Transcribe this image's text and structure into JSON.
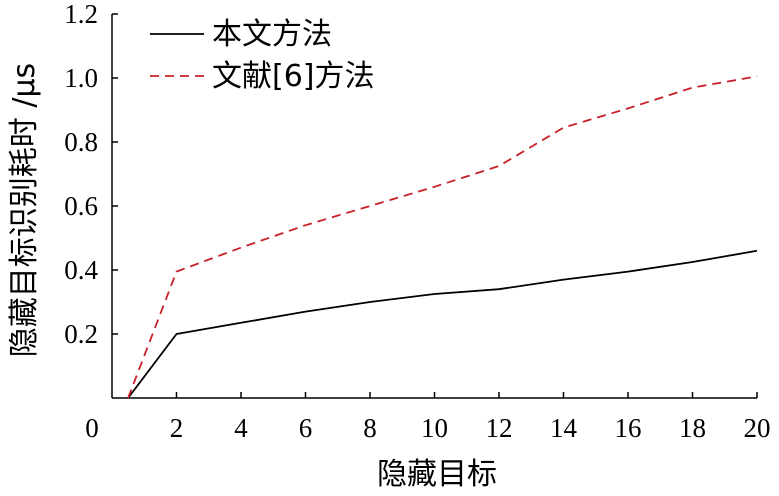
{
  "chart_data": {
    "type": "line",
    "title": "",
    "xlabel": "隐藏目标",
    "ylabel": "隐藏目标识别耗时 /μs",
    "xlim": [
      0,
      20
    ],
    "ylim": [
      0,
      1.2
    ],
    "xticks": [
      0,
      2,
      4,
      6,
      8,
      10,
      12,
      14,
      16,
      18,
      20
    ],
    "xtick_labels": [
      "0",
      "2",
      "4",
      "6",
      "8",
      "10",
      "12",
      "14",
      "16",
      "18",
      "20"
    ],
    "yticks": [
      0.2,
      0.4,
      0.6,
      0.8,
      1.0,
      1.2
    ],
    "ytick_labels": [
      "0.2",
      "0.4",
      "0.6",
      "0.8",
      "1.0",
      "1.2"
    ],
    "grid": false,
    "legend_position": "top-left",
    "series": [
      {
        "name": "本文方法",
        "color": "#000000",
        "style": "solid",
        "x": [
          0.5,
          2,
          4,
          6,
          8,
          10,
          12,
          14,
          16,
          18,
          20
        ],
        "values": [
          0.0,
          0.2,
          0.235,
          0.27,
          0.3,
          0.325,
          0.34,
          0.37,
          0.395,
          0.425,
          0.46
        ]
      },
      {
        "name": "文献[6]方法",
        "color": "#c8202a",
        "style": "dashed",
        "x": [
          0.5,
          2,
          4,
          6,
          8,
          10,
          12,
          14,
          16,
          18,
          20
        ],
        "values": [
          0.0,
          0.395,
          0.47,
          0.54,
          0.6,
          0.66,
          0.725,
          0.845,
          0.905,
          0.97,
          1.005
        ]
      }
    ]
  }
}
